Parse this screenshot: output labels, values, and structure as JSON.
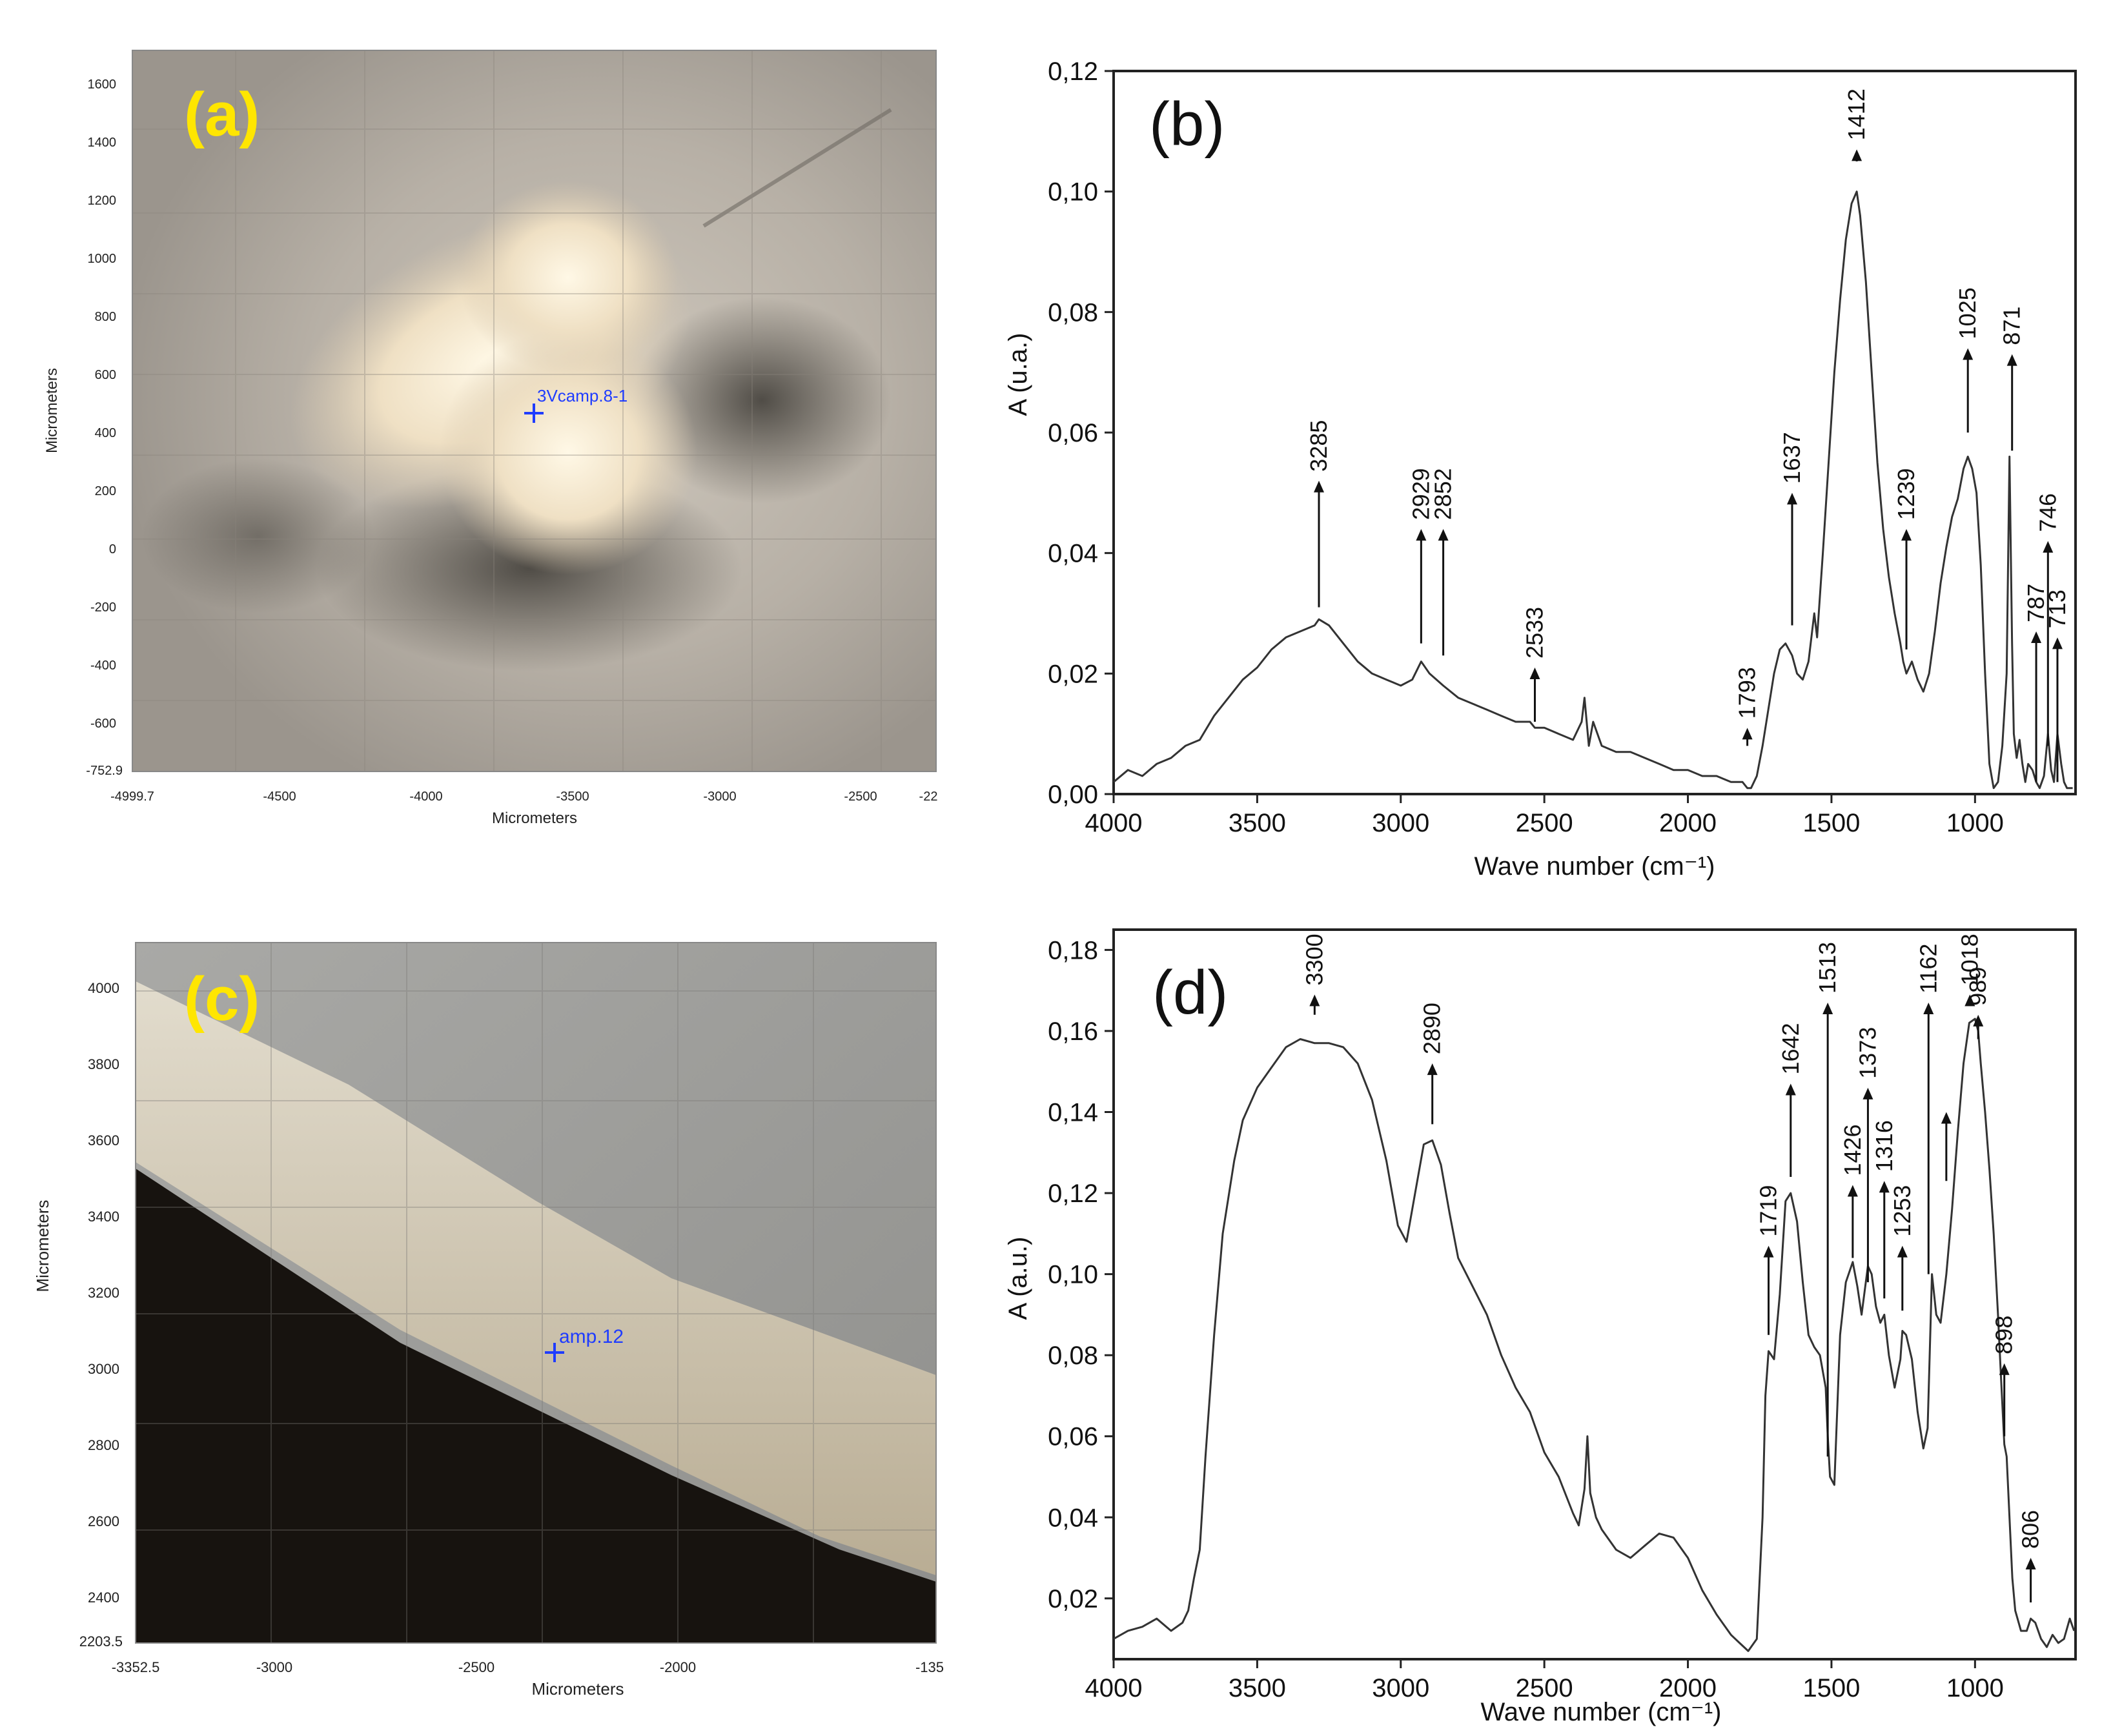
{
  "chart_data": [
    {
      "type": "image",
      "panel_label": "(a)",
      "ylabel": "Micrometers",
      "xlabel": "Micrometers",
      "yticks": [
        "1600",
        "1400",
        "1200",
        "1000",
        "800",
        "600",
        "400",
        "200",
        "0",
        "-200",
        "-400",
        "-600",
        "-752.9"
      ],
      "xticks": [
        "-4999.7",
        "-4500",
        "-4000",
        "-3500",
        "-3000",
        "-2500",
        "-22"
      ],
      "marker_label": "3Vcamp.8-1",
      "colors": {
        "label": "#ffe600",
        "marker": "#1f3cff"
      }
    },
    {
      "type": "line",
      "panel_label": "(b)",
      "xlabel": "Wave number (cm⁻¹)",
      "ylabel": "A (u.a.)",
      "xlim": [
        4000,
        650
      ],
      "ylim": [
        0,
        0.12
      ],
      "xticks": [
        "4000",
        "3500",
        "3000",
        "2500",
        "2000",
        "1500",
        "1000"
      ],
      "yticks": [
        "0,00",
        "0,02",
        "0,04",
        "0,06",
        "0,08",
        "0,10",
        "0,12"
      ],
      "x": [
        4000,
        3950,
        3900,
        3850,
        3800,
        3750,
        3700,
        3650,
        3600,
        3550,
        3500,
        3450,
        3400,
        3350,
        3300,
        3285,
        3250,
        3200,
        3150,
        3100,
        3050,
        3000,
        2960,
        2929,
        2900,
        2852,
        2800,
        2750,
        2700,
        2650,
        2600,
        2550,
        2533,
        2500,
        2450,
        2400,
        2370,
        2360,
        2345,
        2330,
        2300,
        2250,
        2200,
        2150,
        2100,
        2050,
        2000,
        1950,
        1900,
        1850,
        1810,
        1793,
        1780,
        1760,
        1740,
        1720,
        1700,
        1680,
        1660,
        1637,
        1620,
        1600,
        1580,
        1560,
        1550,
        1530,
        1510,
        1490,
        1470,
        1450,
        1430,
        1412,
        1400,
        1380,
        1360,
        1340,
        1320,
        1300,
        1280,
        1260,
        1250,
        1239,
        1220,
        1200,
        1180,
        1160,
        1140,
        1120,
        1100,
        1080,
        1060,
        1040,
        1025,
        1010,
        995,
        980,
        965,
        950,
        935,
        920,
        905,
        890,
        880,
        871,
        865,
        855,
        845,
        835,
        825,
        815,
        800,
        787,
        775,
        760,
        746,
        735,
        725,
        713,
        700,
        690,
        680,
        670,
        660
      ],
      "y": [
        0.002,
        0.004,
        0.003,
        0.005,
        0.006,
        0.008,
        0.009,
        0.013,
        0.016,
        0.019,
        0.021,
        0.024,
        0.026,
        0.027,
        0.028,
        0.029,
        0.028,
        0.025,
        0.022,
        0.02,
        0.019,
        0.018,
        0.019,
        0.022,
        0.02,
        0.018,
        0.016,
        0.015,
        0.014,
        0.013,
        0.012,
        0.012,
        0.011,
        0.011,
        0.01,
        0.009,
        0.012,
        0.016,
        0.008,
        0.012,
        0.008,
        0.007,
        0.007,
        0.006,
        0.005,
        0.004,
        0.004,
        0.003,
        0.003,
        0.002,
        0.002,
        0.001,
        0.001,
        0.003,
        0.008,
        0.014,
        0.02,
        0.024,
        0.025,
        0.023,
        0.02,
        0.019,
        0.022,
        0.03,
        0.026,
        0.04,
        0.055,
        0.07,
        0.082,
        0.092,
        0.098,
        0.1,
        0.096,
        0.085,
        0.07,
        0.055,
        0.044,
        0.036,
        0.03,
        0.025,
        0.022,
        0.02,
        0.022,
        0.019,
        0.017,
        0.02,
        0.027,
        0.035,
        0.041,
        0.046,
        0.049,
        0.054,
        0.056,
        0.054,
        0.05,
        0.038,
        0.02,
        0.005,
        0.001,
        0.002,
        0.008,
        0.02,
        0.056,
        0.025,
        0.01,
        0.006,
        0.009,
        0.005,
        0.002,
        0.005,
        0.004,
        0.002,
        0.001,
        0.003,
        0.01,
        0.004,
        0.002,
        0.01,
        0.005,
        0.002,
        0.001,
        0.001,
        0.001
      ],
      "peaks": [
        {
          "label": "3285",
          "x": 3285,
          "tail": 0.031,
          "head": 0.052
        },
        {
          "label": "2929",
          "x": 2929,
          "tail": 0.025,
          "head": 0.044
        },
        {
          "label": "2852",
          "x": 2852,
          "tail": 0.023,
          "head": 0.044
        },
        {
          "label": "2533",
          "x": 2533,
          "tail": 0.012,
          "head": 0.021
        },
        {
          "label": "1793",
          "x": 1793,
          "tail": 0.008,
          "head": 0.011
        },
        {
          "label": "1637",
          "x": 1637,
          "tail": 0.028,
          "head": 0.05
        },
        {
          "label": "1412",
          "x": 1412,
          "tail": 0.105,
          "head": 0.107
        },
        {
          "label": "1239",
          "x": 1239,
          "tail": 0.024,
          "head": 0.044
        },
        {
          "label": "1025",
          "x": 1025,
          "tail": 0.06,
          "head": 0.074
        },
        {
          "label": "871",
          "x": 871,
          "tail": 0.057,
          "head": 0.073
        },
        {
          "label": "787",
          "x": 787,
          "tail": 0.002,
          "head": 0.027
        },
        {
          "label": "746",
          "x": 746,
          "tail": 0.008,
          "head": 0.042
        },
        {
          "label": "713",
          "x": 713,
          "tail": 0.002,
          "head": 0.026
        }
      ]
    },
    {
      "type": "image",
      "panel_label": "(c)",
      "ylabel": "Micrometers",
      "xlabel": "Micrometers",
      "yticks": [
        "4000",
        "3800",
        "3600",
        "3400",
        "3200",
        "3000",
        "2800",
        "2600",
        "2400",
        "2203.5"
      ],
      "xticks": [
        "-3352.5",
        "-3000",
        "-2500",
        "-2000",
        "-135"
      ],
      "marker_label": "amp.12",
      "colors": {
        "label": "#ffe600",
        "marker": "#1f3cff"
      }
    },
    {
      "type": "line",
      "panel_label": "(d)",
      "xlabel": "Wave number (cm⁻¹)",
      "ylabel": "A (a.u.)",
      "xlim": [
        4000,
        650
      ],
      "ylim": [
        0.005,
        0.185
      ],
      "xticks": [
        "4000",
        "3500",
        "3000",
        "2500",
        "2000",
        "1500",
        "1000"
      ],
      "yticks": [
        "0,02",
        "0,04",
        "0,06",
        "0,08",
        "0,10",
        "0,12",
        "0,14",
        "0,16",
        "0,18"
      ],
      "x": [
        4000,
        3950,
        3900,
        3850,
        3800,
        3760,
        3740,
        3720,
        3700,
        3680,
        3650,
        3620,
        3580,
        3550,
        3500,
        3450,
        3400,
        3350,
        3300,
        3250,
        3200,
        3150,
        3100,
        3050,
        3010,
        2980,
        2950,
        2920,
        2890,
        2860,
        2830,
        2800,
        2750,
        2700,
        2650,
        2600,
        2550,
        2500,
        2450,
        2400,
        2380,
        2360,
        2350,
        2340,
        2320,
        2300,
        2250,
        2200,
        2150,
        2100,
        2050,
        2000,
        1950,
        1900,
        1850,
        1820,
        1790,
        1760,
        1740,
        1730,
        1719,
        1700,
        1680,
        1660,
        1642,
        1620,
        1600,
        1580,
        1560,
        1540,
        1520,
        1513,
        1505,
        1490,
        1470,
        1450,
        1426,
        1410,
        1395,
        1373,
        1360,
        1345,
        1330,
        1316,
        1300,
        1280,
        1260,
        1253,
        1240,
        1220,
        1200,
        1180,
        1165,
        1150,
        1135,
        1120,
        1100,
        1080,
        1060,
        1040,
        1020,
        1000,
        989,
        980,
        965,
        950,
        935,
        920,
        910,
        898,
        890,
        880,
        870,
        860,
        840,
        820,
        806,
        790,
        770,
        750,
        730,
        710,
        690,
        670,
        655
      ],
      "y": [
        0.01,
        0.012,
        0.013,
        0.015,
        0.012,
        0.014,
        0.017,
        0.025,
        0.032,
        0.055,
        0.085,
        0.11,
        0.128,
        0.138,
        0.146,
        0.151,
        0.156,
        0.158,
        0.157,
        0.157,
        0.156,
        0.152,
        0.143,
        0.128,
        0.112,
        0.108,
        0.12,
        0.132,
        0.133,
        0.127,
        0.115,
        0.104,
        0.097,
        0.09,
        0.08,
        0.072,
        0.066,
        0.056,
        0.05,
        0.041,
        0.038,
        0.047,
        0.06,
        0.046,
        0.04,
        0.037,
        0.032,
        0.03,
        0.033,
        0.036,
        0.035,
        0.03,
        0.022,
        0.016,
        0.011,
        0.009,
        0.007,
        0.01,
        0.04,
        0.07,
        0.081,
        0.079,
        0.095,
        0.118,
        0.12,
        0.113,
        0.098,
        0.085,
        0.082,
        0.08,
        0.072,
        0.06,
        0.05,
        0.048,
        0.085,
        0.098,
        0.103,
        0.097,
        0.09,
        0.102,
        0.1,
        0.092,
        0.088,
        0.09,
        0.08,
        0.072,
        0.079,
        0.086,
        0.085,
        0.079,
        0.066,
        0.057,
        0.062,
        0.1,
        0.09,
        0.088,
        0.1,
        0.116,
        0.135,
        0.152,
        0.162,
        0.163,
        0.16,
        0.152,
        0.14,
        0.126,
        0.11,
        0.09,
        0.075,
        0.058,
        0.055,
        0.04,
        0.025,
        0.017,
        0.012,
        0.012,
        0.015,
        0.014,
        0.01,
        0.008,
        0.011,
        0.009,
        0.01,
        0.015,
        0.012
      ],
      "peaks": [
        {
          "label": "3300",
          "x": 3300,
          "tail": 0.164,
          "head": 0.169
        },
        {
          "label": "2890",
          "x": 2890,
          "tail": 0.137,
          "head": 0.152
        },
        {
          "label": "1719",
          "x": 1719,
          "tail": 0.085,
          "head": 0.107
        },
        {
          "label": "1642",
          "x": 1642,
          "tail": 0.124,
          "head": 0.147
        },
        {
          "label": "1513",
          "x": 1513,
          "tail": 0.055,
          "head": 0.167
        },
        {
          "label": "1426",
          "x": 1426,
          "tail": 0.104,
          "head": 0.122
        },
        {
          "label": "1373",
          "x": 1373,
          "tail": 0.098,
          "head": 0.146
        },
        {
          "label": "1316",
          "x": 1316,
          "tail": 0.094,
          "head": 0.123
        },
        {
          "label": "1253",
          "x": 1253,
          "tail": 0.091,
          "head": 0.107
        },
        {
          "label": "1162",
          "x": 1162,
          "tail": 0.1,
          "head": 0.167
        },
        {
          "label": "",
          "x": 1100,
          "tail": 0.123,
          "head": 0.14
        },
        {
          "label": "1018",
          "x": 1018,
          "tail": 0.167,
          "head": 0.169
        },
        {
          "label": "989",
          "x": 989,
          "tail": 0.158,
          "head": 0.164
        },
        {
          "label": "898",
          "x": 898,
          "tail": 0.06,
          "head": 0.078
        },
        {
          "label": "806",
          "x": 806,
          "tail": 0.019,
          "head": 0.03
        }
      ]
    }
  ]
}
